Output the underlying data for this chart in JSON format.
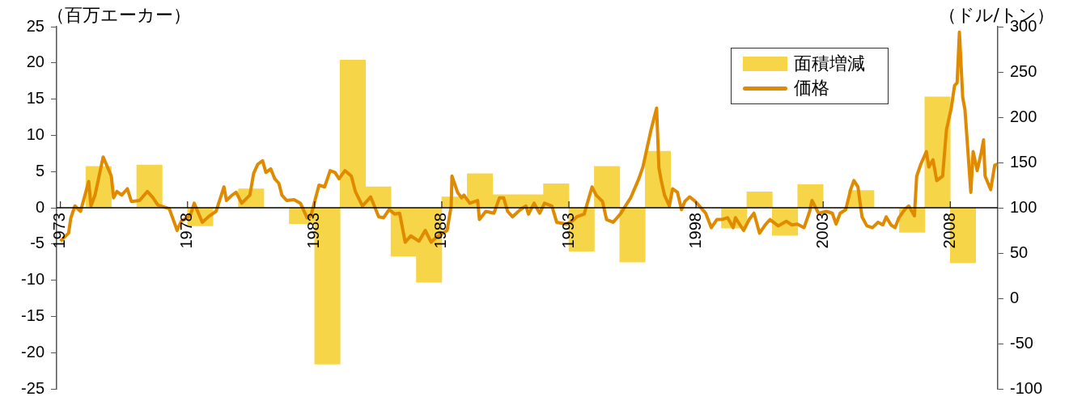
{
  "chart_data": {
    "type": "bar",
    "ylabel": "（百万エーカー）",
    "y2label": "（ドル/トン）",
    "xlim": [
      1972.85,
      2009.87
    ],
    "xticks": [
      1973,
      1978,
      1983,
      1988,
      1993,
      1998,
      2003,
      2008
    ],
    "ylim": [
      -25,
      25
    ],
    "yticks": [
      -25,
      -20,
      -15,
      -10,
      -5,
      0,
      5,
      10,
      15,
      20,
      25
    ],
    "y2lim": [
      -100,
      300
    ],
    "y2ticks": [
      -100,
      -50,
      0,
      50,
      100,
      150,
      200,
      250,
      300
    ],
    "legend": "top right",
    "grid": false,
    "marker": "none",
    "series": [
      {
        "name": "面積増減",
        "color": "#f7d548",
        "x": [
          1973.5,
          1974.5,
          1975.5,
          1976.5,
          1977.5,
          1978.5,
          1979.5,
          1980.5,
          1981.5,
          1982.5,
          1983.5,
          1984.5,
          1985.5,
          1986.5,
          1987.5,
          1988.5,
          1989.5,
          1990.5,
          1991.5,
          1992.5,
          1993.5,
          1994.5,
          1995.5,
          1996.5,
          1997.5,
          1998.5,
          1999.5,
          2000.5,
          2001.5,
          2002.5,
          2003.5,
          2004.5,
          2005.5,
          2006.5,
          2007.5,
          2008.5
        ],
        "values": [
          0,
          5.7,
          0,
          5.9,
          0,
          -2.5,
          0,
          2.6,
          0,
          -2.2,
          -21.6,
          20.4,
          2.9,
          -6.7,
          -10.3,
          1.5,
          4.7,
          1.8,
          1.8,
          3.3,
          -6,
          5.7,
          -7.5,
          7.8,
          0,
          0,
          -2.8,
          2.2,
          -3.8,
          3.2,
          0,
          2.4,
          0,
          -3.4,
          15.3,
          -7.6
        ]
      },
      {
        "name": "価格",
        "type": "line",
        "axis": "y2",
        "color": "#e08a00",
        "x": [
          1973.0,
          1973.32,
          1973.41,
          1973.57,
          1973.79,
          1974.11,
          1974.2,
          1974.36,
          1974.58,
          1974.68,
          1975.0,
          1975.09,
          1975.22,
          1975.41,
          1975.63,
          1975.79,
          1976.11,
          1976.42,
          1976.64,
          1976.83,
          1977.28,
          1977.59,
          1977.75,
          1978.1,
          1978.26,
          1978.58,
          1978.86,
          1979.12,
          1979.43,
          1979.53,
          1979.75,
          1979.91,
          1980.13,
          1980.45,
          1980.6,
          1980.76,
          1980.95,
          1981.08,
          1981.27,
          1981.43,
          1981.59,
          1981.71,
          1981.9,
          1982.19,
          1982.44,
          1982.7,
          1982.85,
          1983.17,
          1983.39,
          1983.61,
          1983.8,
          1983.96,
          1984.19,
          1984.44,
          1984.6,
          1984.88,
          1985.2,
          1985.52,
          1985.71,
          1985.93,
          1986.15,
          1986.34,
          1986.56,
          1986.78,
          1987.1,
          1987.35,
          1987.58,
          1987.77,
          1988.21,
          1988.37,
          1988.4,
          1988.62,
          1988.78,
          1988.87,
          1989.1,
          1989.41,
          1989.48,
          1989.73,
          1990.05,
          1990.27,
          1990.43,
          1990.59,
          1990.78,
          1991.09,
          1991.31,
          1991.41,
          1991.63,
          1991.85,
          1992.04,
          1992.33,
          1992.52,
          1992.9,
          1993.12,
          1993.31,
          1993.6,
          1993.91,
          1994.07,
          1994.32,
          1994.48,
          1994.74,
          1995.02,
          1995.43,
          1995.75,
          1995.91,
          1996.23,
          1996.45,
          1996.54,
          1996.64,
          1996.76,
          1996.95,
          1997.08,
          1997.27,
          1997.43,
          1997.56,
          1997.75,
          1997.97,
          1998.38,
          1998.6,
          1998.82,
          1999.01,
          1999.24,
          1999.46,
          1999.55,
          1999.87,
          2000.09,
          2000.28,
          2000.5,
          2000.72,
          2000.91,
          2001.23,
          2001.55,
          2001.77,
          2001.99,
          2002.25,
          2002.47,
          2002.56,
          2002.82,
          2003.13,
          2003.36,
          2003.51,
          2003.67,
          2003.89,
          2004.08,
          2004.21,
          2004.37,
          2004.53,
          2004.72,
          2004.94,
          2005.16,
          2005.35,
          2005.48,
          2005.67,
          2005.83,
          2005.98,
          2006.21,
          2006.37,
          2006.59,
          2006.68,
          2006.84,
          2007.06,
          2007.16,
          2007.32,
          2007.47,
          2007.7,
          2007.85,
          2008.04,
          2008.17,
          2008.27,
          2008.36,
          2008.49,
          2008.58,
          2008.81,
          2008.9,
          2009.06,
          2009.22,
          2009.31,
          2009.37,
          2009.59,
          2009.75,
          2009.85
        ],
        "values": [
          63,
          72,
          89,
          102,
          96,
          129,
          102,
          114,
          143,
          156,
          135,
          111,
          118,
          114,
          121,
          107,
          108,
          118,
          111,
          103,
          99,
          75,
          85,
          91,
          105,
          84,
          91,
          96,
          123,
          108,
          114,
          117,
          105,
          114,
          138,
          148,
          152,
          139,
          143,
          132,
          127,
          114,
          108,
          109,
          105,
          89,
          91,
          125,
          123,
          141,
          139,
          132,
          141,
          135,
          118,
          102,
          112,
          90,
          89,
          98,
          93,
          94,
          62,
          69,
          63,
          75,
          62,
          67,
          75,
          102,
          135,
          117,
          111,
          114,
          105,
          108,
          87,
          96,
          94,
          111,
          111,
          96,
          90,
          98,
          102,
          93,
          105,
          94,
          105,
          102,
          84,
          82,
          85,
          90,
          93,
          123,
          114,
          107,
          87,
          84,
          93,
          111,
          132,
          145,
          186,
          210,
          144,
          129,
          114,
          102,
          121,
          117,
          98,
          107,
          112,
          107,
          94,
          78,
          87,
          87,
          89,
          78,
          89,
          75,
          87,
          94,
          72,
          81,
          87,
          80,
          85,
          81,
          82,
          78,
          96,
          108,
          94,
          96,
          94,
          82,
          94,
          98,
          120,
          130,
          123,
          90,
          80,
          78,
          84,
          81,
          90,
          81,
          78,
          89,
          98,
          102,
          91,
          135,
          148,
          162,
          145,
          153,
          130,
          135,
          186,
          210,
          235,
          238,
          294,
          222,
          208,
          117,
          162,
          141,
          161,
          175,
          135,
          120,
          147,
          148
        ]
      }
    ]
  }
}
